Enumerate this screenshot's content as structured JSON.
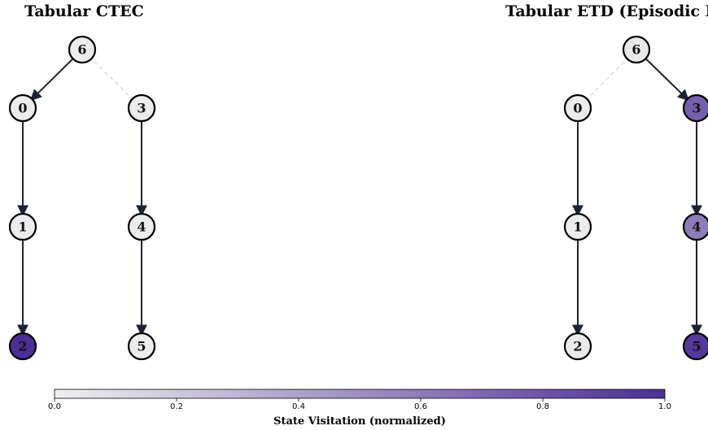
{
  "panels": [
    {
      "title": "Tabular CTEC",
      "nodes": [
        {
          "id": "6",
          "value": 0.02
        },
        {
          "id": "0",
          "value": 0.02
        },
        {
          "id": "3",
          "value": 0.02
        },
        {
          "id": "1",
          "value": 0.02
        },
        {
          "id": "4",
          "value": 0.02
        },
        {
          "id": "2",
          "value": 1.0
        },
        {
          "id": "5",
          "value": 0.02
        }
      ],
      "solid_edges": [
        [
          "6",
          "0"
        ],
        [
          "0",
          "1"
        ],
        [
          "1",
          "2"
        ],
        [
          "3",
          "4"
        ],
        [
          "4",
          "5"
        ]
      ],
      "dashed_edges": [
        [
          "6",
          "3"
        ]
      ]
    },
    {
      "title": "Tabular ETD (Episodic N",
      "nodes": [
        {
          "id": "6",
          "value": 0.03
        },
        {
          "id": "0",
          "value": 0.02
        },
        {
          "id": "3",
          "value": 0.75
        },
        {
          "id": "1",
          "value": 0.02
        },
        {
          "id": "4",
          "value": 0.6
        },
        {
          "id": "2",
          "value": 0.03
        },
        {
          "id": "5",
          "value": 0.95
        }
      ],
      "solid_edges": [
        [
          "6",
          "3"
        ],
        [
          "0",
          "1"
        ],
        [
          "1",
          "2"
        ],
        [
          "3",
          "4"
        ],
        [
          "4",
          "5"
        ]
      ],
      "dashed_edges": [
        [
          "6",
          "0"
        ]
      ]
    }
  ],
  "colorbar": {
    "label": "State Visitation (normalized)",
    "ticks": [
      "0.0",
      "0.2",
      "0.4",
      "0.6",
      "0.8",
      "1.0"
    ],
    "color_low": "#efefef",
    "color_high": "#4b2f96"
  },
  "edge_color": "#1c2333"
}
